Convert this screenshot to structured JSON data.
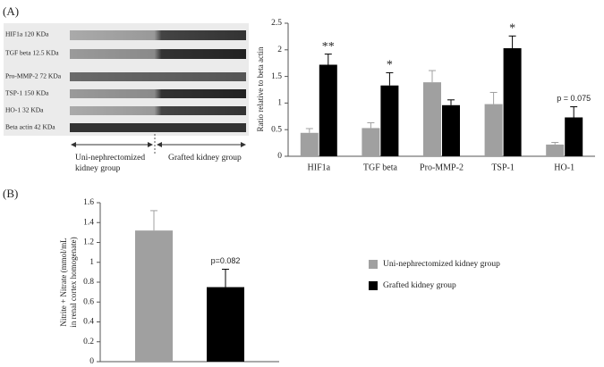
{
  "panel_labels": [
    "(A)",
    "(B)"
  ],
  "blot": {
    "bands": [
      "HIF1a 120 KDa",
      "TGF beta 12.5 KDa",
      "Pro-MMP-2 72 KDa",
      "TSP-1 150 KDa",
      "HO-1 32 KDa",
      "Beta actin 42 KDa"
    ],
    "uni_group": [
      "Uni-nephrectomized",
      "kidney group"
    ],
    "grafted_group": "Grafted kidney group"
  },
  "chart_data": [
    {
      "type": "bar",
      "ylabel": [
        "Ratio relative to beta actin"
      ],
      "categories": [
        "HIF1a",
        "TGF beta",
        "Pro-MMP-2",
        "TSP-1",
        "HO-1"
      ],
      "series": [
        {
          "color": "#a0a0a0",
          "values": [
            0.44,
            0.53,
            1.39,
            0.98,
            0.22
          ],
          "errors": [
            0.08,
            0.1,
            0.22,
            0.22,
            0.04
          ]
        },
        {
          "color": "#000000",
          "values": [
            1.72,
            1.33,
            0.96,
            2.03,
            0.73
          ],
          "errors": [
            0.2,
            0.24,
            0.1,
            0.23,
            0.2
          ]
        }
      ],
      "annotations": [
        {
          "category": "HIF1a",
          "text": "**"
        },
        {
          "category": "TGF beta",
          "text": "*"
        },
        {
          "category": "TSP-1",
          "text": "*"
        },
        {
          "category": "HO-1",
          "text": "p = 0.075"
        }
      ],
      "ylim": [
        0,
        2.5
      ],
      "yticks": [
        0,
        0.5,
        1,
        1.5,
        2,
        2.5
      ]
    },
    {
      "type": "bar",
      "ylabel": [
        "Nitrite + Nitrate (mmol/mL",
        "in renal cortex homogenate)"
      ],
      "categories": [
        null
      ],
      "series": [
        {
          "name": "Uni-nephrectomized kidney group",
          "color": "#a0a0a0",
          "values": [
            1.32
          ],
          "errors": [
            0.2
          ]
        },
        {
          "name": "Grafted kidney group",
          "color": "#000000",
          "values": [
            0.75
          ],
          "errors": [
            0.18
          ]
        }
      ],
      "annotations": [
        {
          "text": "p=0.082"
        }
      ],
      "ylim": [
        0,
        1.6
      ],
      "yticks": [
        0,
        0.2,
        0.4,
        0.6,
        0.8,
        1,
        1.2,
        1.4,
        1.6
      ]
    }
  ]
}
